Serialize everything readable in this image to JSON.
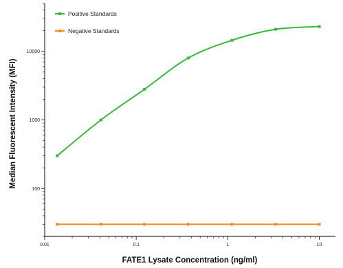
{
  "chart_data": {
    "type": "scatter",
    "xlabel": "FATE1 Lysate Concentration (ng/ml)",
    "ylabel": "Median Fluorescent Intensity (MFI)",
    "x_scale": "log",
    "y_scale": "log",
    "xlim": [
      0.01,
      15
    ],
    "ylim": [
      20,
      50000
    ],
    "x_ticks": [
      0.01,
      0.1,
      1,
      10
    ],
    "x_tick_labels": [
      "0.01",
      "0.1",
      "1",
      "10"
    ],
    "y_ticks": [
      100,
      1000,
      10000
    ],
    "y_tick_labels": [
      "100",
      "1000",
      "10000"
    ],
    "legend_position": "top-left",
    "series": [
      {
        "name": "Positive Standards",
        "color": "#33bb33",
        "fit": "smooth curve",
        "x": [
          0.0137,
          0.0412,
          0.123,
          0.37,
          1.11,
          3.33,
          10
        ],
        "y": [
          300,
          1000,
          2800,
          8000,
          14500,
          21000,
          23000
        ]
      },
      {
        "name": "Negative Standards",
        "color": "#f08c1e",
        "fit": "flat line",
        "x": [
          0.0137,
          0.0412,
          0.123,
          0.37,
          1.11,
          3.33,
          10
        ],
        "y": [
          30,
          30,
          30,
          30,
          30,
          30,
          30
        ]
      }
    ]
  }
}
